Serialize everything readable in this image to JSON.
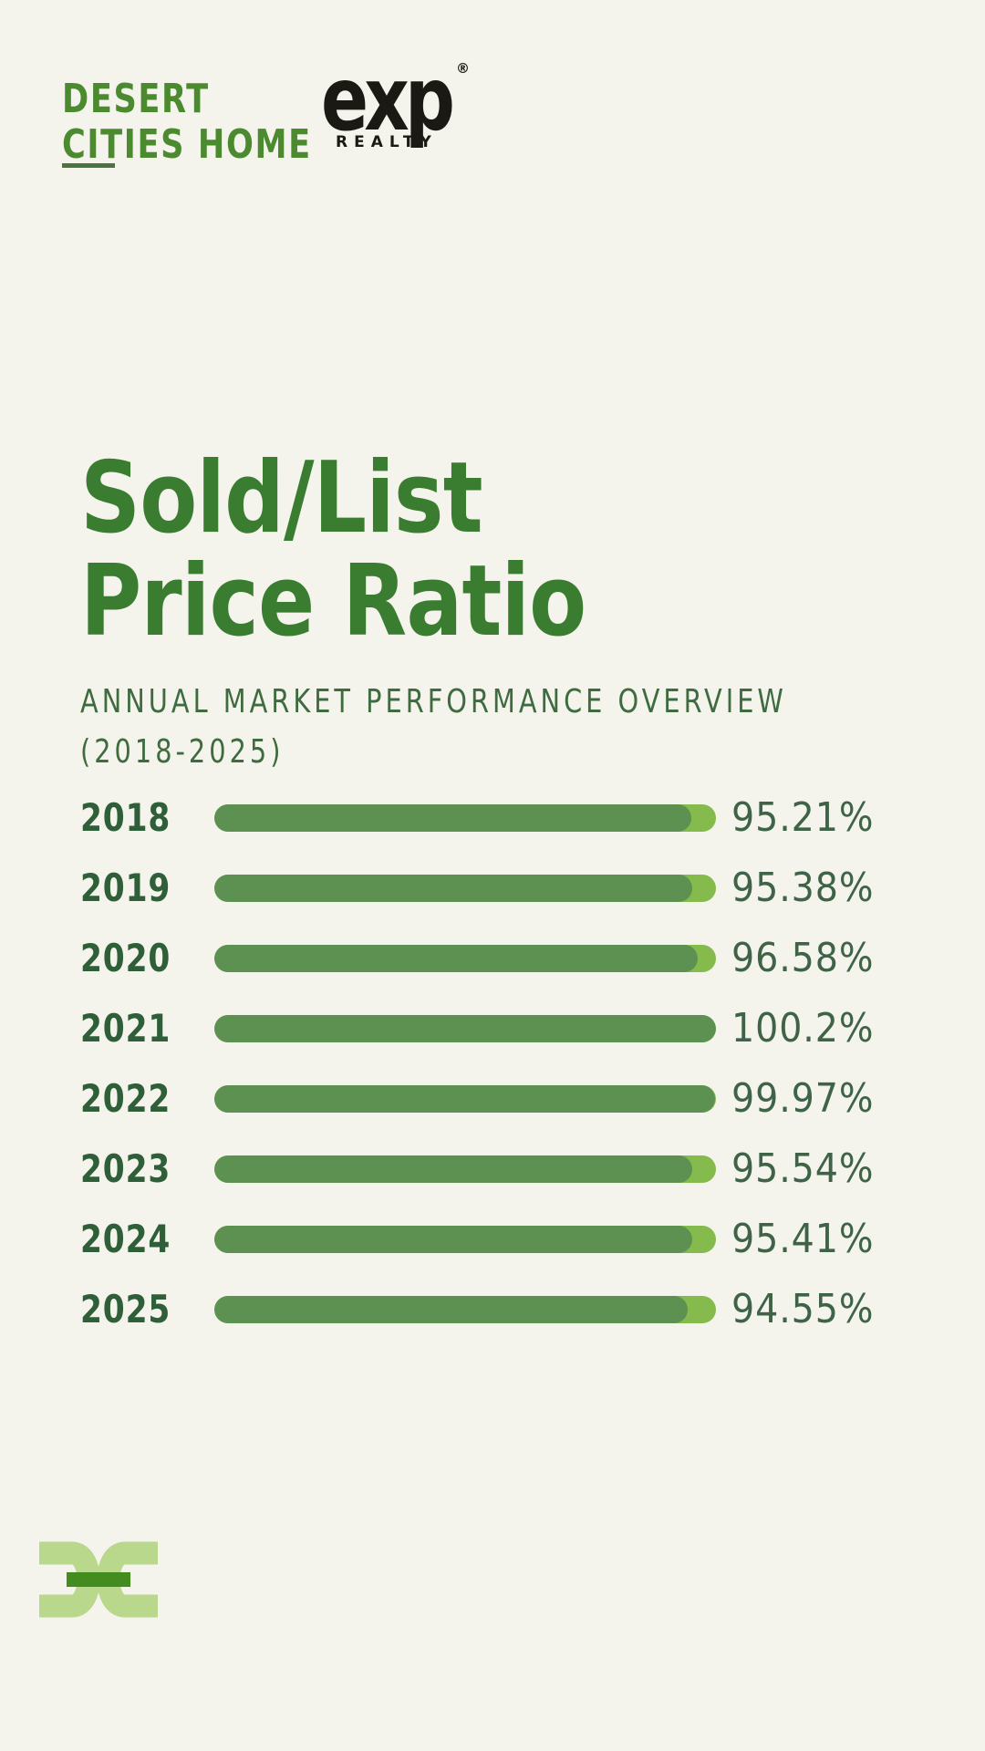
{
  "page": {
    "background": "#f4f3ec"
  },
  "header": {
    "brand": {
      "line1": "DESERT",
      "line2": "CITIES HOME"
    },
    "exp": {
      "wordmark": "exp",
      "registered": "®",
      "sub_label": "REALTY"
    }
  },
  "title": {
    "line1": "Sold/List",
    "line2": "Price Ratio"
  },
  "subtitle": {
    "line1": "ANNUAL MARKET PERFORMANCE OVERVIEW",
    "line2": "(2018-2025)"
  },
  "chart_data": {
    "type": "bar",
    "orientation": "horizontal",
    "title": "Sold/List Price Ratio",
    "subtitle": "ANNUAL MARKET PERFORMANCE OVERVIEW (2018-2025)",
    "categories": [
      "2018",
      "2019",
      "2020",
      "2021",
      "2022",
      "2023",
      "2024",
      "2025"
    ],
    "values": [
      95.21,
      95.38,
      96.58,
      100.2,
      99.97,
      95.54,
      95.41,
      94.55
    ],
    "value_labels": [
      "95.21%",
      "95.38%",
      "96.58%",
      "100.2%",
      "99.97%",
      "95.54%",
      "95.41%",
      "94.55%"
    ],
    "xlabel": "",
    "ylabel": "",
    "xlim": [
      0,
      100.2
    ],
    "grid": false,
    "legend": false
  },
  "colors": {
    "bg": "#f4f3ec",
    "brand_green": "#4b8a2f",
    "underline_green": "#4a7540",
    "title_green": "#3a7d31",
    "subtitle_green": "#3e6b3f",
    "year_green": "#2f5f38",
    "pct_green": "#3e6347",
    "bar_fill": "#5c9152",
    "bar_track": "#85ba4d",
    "mark_light": "#b9d88c",
    "mark_dark": "#448c20",
    "exp_black": "#1a1914"
  }
}
